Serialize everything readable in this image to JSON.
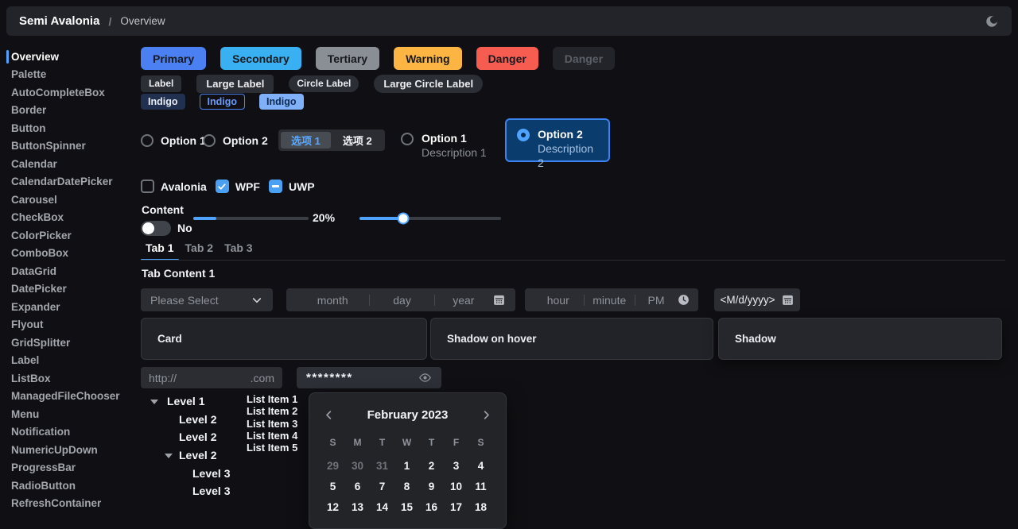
{
  "colors": {
    "primary": "#4a80f2",
    "secondary": "#38b0f2",
    "tertiary": "#8a8e95",
    "warning": "#fcb543",
    "danger": "#f75c51",
    "accent": "#4fa3ff",
    "accent-deep": "#3c82f0",
    "selected-bg": "#0a3c6e",
    "indigo-dark": "#22304f",
    "indigo-light": "#7fb0f8",
    "card": "#222328",
    "panel": "#232428"
  },
  "navbar": {
    "brand": "Semi Avalonia",
    "separator": "/",
    "page": "Overview"
  },
  "sidebar": {
    "active_index": 0,
    "items": [
      "Overview",
      "Palette",
      "AutoCompleteBox",
      "Border",
      "Button",
      "ButtonSpinner",
      "Calendar",
      "CalendarDatePicker",
      "Carousel",
      "CheckBox",
      "ColorPicker",
      "ComboBox",
      "DataGrid",
      "DatePicker",
      "Expander",
      "Flyout",
      "GridSplitter",
      "Label",
      "ListBox",
      "ManagedFileChooser",
      "Menu",
      "Notification",
      "NumericUpDown",
      "ProgressBar",
      "RadioButton",
      "RefreshContainer"
    ]
  },
  "buttons": [
    {
      "label": "Primary",
      "bg": "#4a80f2"
    },
    {
      "label": "Secondary",
      "bg": "#38b0f2"
    },
    {
      "label": "Tertiary",
      "bg": "#8a8e95"
    },
    {
      "label": "Warning",
      "bg": "#fcb543"
    },
    {
      "label": "Danger",
      "bg": "#f75c51"
    },
    {
      "label": "Danger",
      "disabled": true
    }
  ],
  "tags": [
    {
      "label": "Label"
    },
    {
      "label": "Large Label"
    },
    {
      "label": "Circle Label"
    },
    {
      "label": "Large Circle Label"
    }
  ],
  "indigo_tags": [
    {
      "label": "Indigo",
      "variant": "solid-dark"
    },
    {
      "label": "Indigo",
      "variant": "outline"
    },
    {
      "label": "Indigo",
      "variant": "solid-light"
    }
  ],
  "radios": {
    "plain": [
      {
        "label": "Option 1",
        "checked": false
      },
      {
        "label": "Option 2",
        "checked": false
      }
    ],
    "segmented": [
      {
        "label": "选项 1",
        "selected": true
      },
      {
        "label": "选项 2",
        "selected": false
      }
    ],
    "cards": [
      {
        "title": "Option 1",
        "description": "Description 1",
        "checked": false
      },
      {
        "title": "Option 2",
        "description": "Description 2",
        "checked": true
      }
    ]
  },
  "checkboxes": [
    {
      "label": "Avalonia",
      "state": "unchecked"
    },
    {
      "label": "WPF",
      "state": "checked"
    },
    {
      "label": "UWP",
      "state": "indeterminate"
    }
  ],
  "content_section": {
    "label": "Content",
    "toggle_label": "No",
    "toggle_on": false
  },
  "sliders": [
    {
      "value": 20,
      "label": "20%",
      "thumb": false
    },
    {
      "value": 31,
      "thumb": true
    }
  ],
  "tabs": {
    "items": [
      "Tab 1",
      "Tab 2",
      "Tab 3"
    ],
    "active_index": 0,
    "content": "Tab Content 1"
  },
  "pickers": {
    "combobox": {
      "placeholder": "Please Select"
    },
    "date": {
      "segments": [
        "month",
        "day",
        "year"
      ]
    },
    "time": {
      "segments": [
        "hour",
        "minute",
        "PM"
      ]
    },
    "calendar_date": {
      "placeholder": "<M/d/yyyy>"
    }
  },
  "cards": [
    {
      "label": "Card"
    },
    {
      "label": "Shadow on hover"
    },
    {
      "label": "Shadow"
    }
  ],
  "inputs": {
    "url": {
      "prefix": "http://",
      "suffix": ".com"
    },
    "password": {
      "value": "********"
    }
  },
  "tree": [
    {
      "label": "Level 1",
      "level": 0,
      "expander": true
    },
    {
      "label": "Level 2",
      "level": 1,
      "expander": false
    },
    {
      "label": "Level 2",
      "level": 1,
      "expander": false
    },
    {
      "label": "Level 2",
      "level": 1,
      "expander": true
    },
    {
      "label": "Level 3",
      "level": 2,
      "expander": false
    },
    {
      "label": "Level 3",
      "level": 2,
      "expander": false
    }
  ],
  "list": {
    "items": [
      "List Item 1",
      "List Item 2",
      "List Item 3",
      "List Item 4",
      "List Item 5"
    ]
  },
  "calendar": {
    "title": "February 2023",
    "weekdays": [
      "S",
      "M",
      "T",
      "W",
      "T",
      "F",
      "S"
    ],
    "rows": [
      [
        {
          "d": "29",
          "muted": true
        },
        {
          "d": "30",
          "muted": true
        },
        {
          "d": "31",
          "muted": true
        },
        {
          "d": "1"
        },
        {
          "d": "2"
        },
        {
          "d": "3"
        },
        {
          "d": "4"
        }
      ],
      [
        {
          "d": "5"
        },
        {
          "d": "6"
        },
        {
          "d": "7"
        },
        {
          "d": "8"
        },
        {
          "d": "9"
        },
        {
          "d": "10"
        },
        {
          "d": "11"
        }
      ],
      [
        {
          "d": "12"
        },
        {
          "d": "13"
        },
        {
          "d": "14"
        },
        {
          "d": "15"
        },
        {
          "d": "16"
        },
        {
          "d": "17"
        },
        {
          "d": "18"
        }
      ]
    ]
  }
}
